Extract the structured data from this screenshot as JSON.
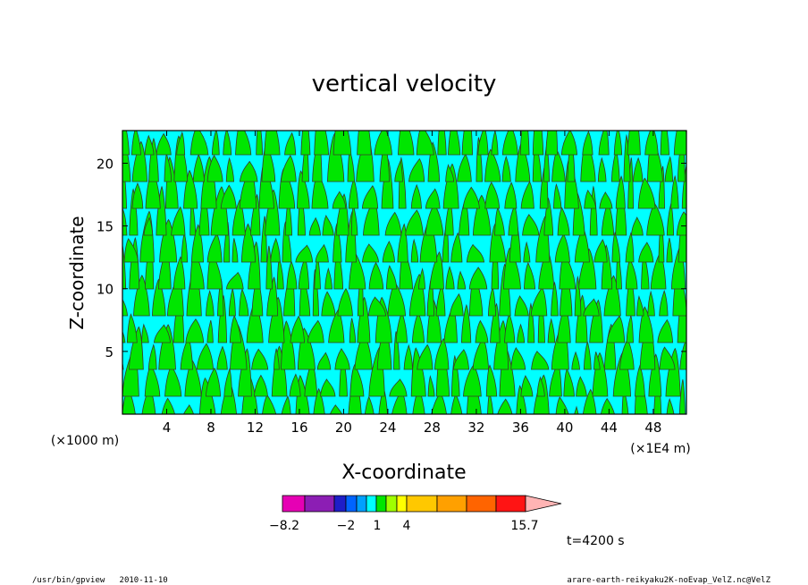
{
  "chart_data": {
    "type": "heatmap",
    "title": "vertical velocity",
    "xlabel": "X-coordinate",
    "ylabel": "Z-coordinate",
    "x_scale_label": "(×1E4 m)",
    "y_scale_label": "(×1000 m)",
    "xlim": [
      0,
      51
    ],
    "ylim": [
      0,
      22.6
    ],
    "x_ticks": [
      4,
      8,
      12,
      16,
      20,
      24,
      28,
      32,
      36,
      40,
      44,
      48
    ],
    "y_ticks": [
      5,
      10,
      15,
      20
    ],
    "contour_fill_colors": [
      "#00ffff",
      "#00e600"
    ],
    "colorbar": {
      "segment_colors": [
        "#e600b4",
        "#8c1eb4",
        "#1e1ec8",
        "#0064ff",
        "#00a0ff",
        "#00ffff",
        "#00e600",
        "#a0ff00",
        "#ffff00",
        "#ffc800",
        "#ffa000",
        "#ff6400",
        "#ff1414",
        "#ff8282",
        "#ffb4b4"
      ],
      "labels": [
        "−8.2",
        "−2",
        "1",
        "4",
        "15.7"
      ]
    },
    "time_label": "t=4200 s"
  },
  "footer": {
    "left": "/usr/bin/gpview   2010-11-10",
    "right": "arare-earth-reikyaku2K-noEvap_VelZ.nc@VelZ"
  }
}
